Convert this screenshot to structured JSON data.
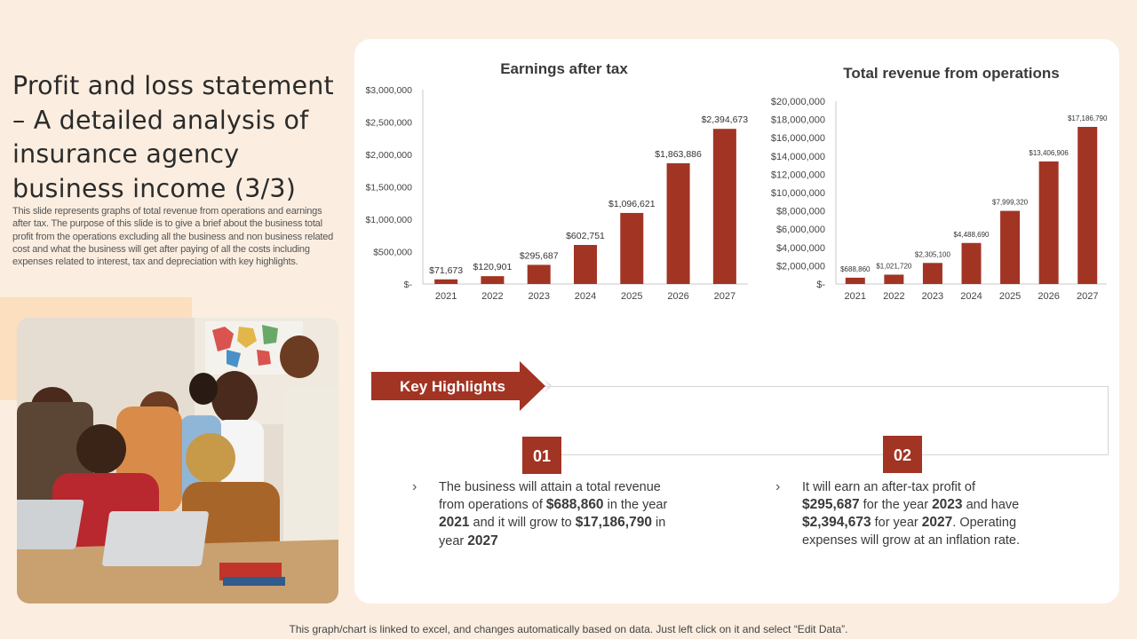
{
  "slide": {
    "title": "Profit and loss statement – A detailed analysis of insurance agency business income (3/3)",
    "description": "This slide represents graphs of total revenue from operations and earnings after tax. The purpose of this slide is to give a brief about the business total profit from the operations excluding all the business and non business related cost and what the business will get after paying of all the costs including expenses related to interest, tax and depreciation with key highlights.",
    "footer": "This graph/chart is linked to excel,  and changes automatically based on data. Just left click on it and select “Edit Data”."
  },
  "colors": {
    "bar": "#a23424",
    "background": "#fbeee0",
    "accent": "#fbdfbf"
  },
  "chart_data": [
    {
      "type": "bar",
      "title": "Earnings after tax",
      "categories": [
        "2021",
        "2022",
        "2023",
        "2024",
        "2025",
        "2026",
        "2027"
      ],
      "values": [
        71673,
        120901,
        295687,
        602751,
        1096621,
        1863886,
        2394673
      ],
      "value_labels": [
        "$71,673",
        "$120,901",
        "$295,687",
        "$602,751",
        "$1,096,621",
        "$1,863,886",
        "$2,394,673"
      ],
      "ylim": [
        0,
        3000000
      ],
      "y_ticks": [
        0,
        500000,
        1000000,
        1500000,
        2000000,
        2500000,
        3000000
      ],
      "y_tick_labels": [
        "$-",
        "$500,000",
        "$1,000,000",
        "$1,500,000",
        "$2,000,000",
        "$2,500,000",
        "$3,000,000"
      ],
      "grid": false
    },
    {
      "type": "bar",
      "title": "Total revenue from operations",
      "categories": [
        "2021",
        "2022",
        "2023",
        "2024",
        "2025",
        "2026",
        "2027"
      ],
      "values": [
        688860,
        1021720,
        2305100,
        4488690,
        7999320,
        13406906,
        17186790
      ],
      "value_labels": [
        "$688,860",
        "$1,021,720",
        "$2,305,100",
        "$4,488,690",
        "$7,999,320",
        "$13,406,906",
        "$17,186,790"
      ],
      "ylim": [
        0,
        20000000
      ],
      "y_ticks": [
        0,
        2000000,
        4000000,
        6000000,
        8000000,
        10000000,
        12000000,
        14000000,
        16000000,
        18000000,
        20000000
      ],
      "y_tick_labels": [
        "$-",
        "$2,000,000",
        "$4,000,000",
        "$6,000,000",
        "$8,000,000",
        "$10,000,000",
        "$12,000,000",
        "$14,000,000",
        "$16,000,000",
        "$18,000,000",
        "$20,000,000"
      ],
      "grid": false
    }
  ],
  "highlights": {
    "heading": "Key Highlights",
    "items": [
      {
        "number": "01",
        "segments": [
          {
            "t": "The business will attain a total revenue from operations of ",
            "b": false
          },
          {
            "t": "$688,860",
            "b": true
          },
          {
            "t": " in the year ",
            "b": false
          },
          {
            "t": "2021",
            "b": true
          },
          {
            "t": " and it will grow to ",
            "b": false
          },
          {
            "t": "$17,186,790",
            "b": true
          },
          {
            "t": " in year ",
            "b": false
          },
          {
            "t": "2027",
            "b": true
          }
        ]
      },
      {
        "number": "02",
        "segments": [
          {
            "t": "It will earn an after-tax profit of ",
            "b": false
          },
          {
            "t": "$295,687",
            "b": true
          },
          {
            "t": " for the year ",
            "b": false
          },
          {
            "t": "2023",
            "b": true
          },
          {
            "t": " and have ",
            "b": false
          },
          {
            "t": "$2,394,673",
            "b": true
          },
          {
            "t": " for year ",
            "b": false
          },
          {
            "t": "2027",
            "b": true
          },
          {
            "t": ". Operating expenses will grow at an inflation rate.",
            "b": false
          }
        ]
      }
    ]
  }
}
